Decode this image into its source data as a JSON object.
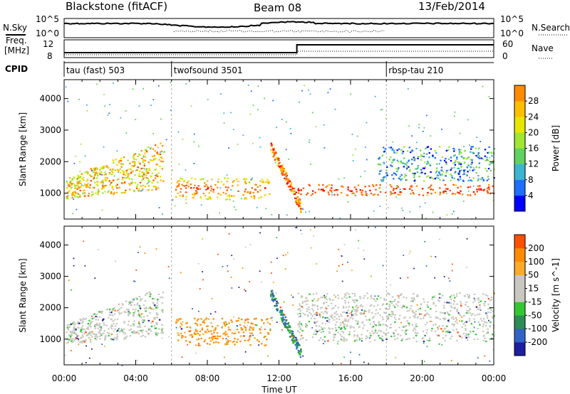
{
  "header": {
    "station": "Blackstone (fitACF)",
    "beam": "Beam 08",
    "date": "13/Feb/2014"
  },
  "noise_panel": {
    "left_label": "N.Sky",
    "right_label": "N.Search",
    "left_ticks": [
      "10^5",
      "10^0"
    ],
    "right_ticks": [
      "10^5",
      "10^0"
    ]
  },
  "freq_panel": {
    "left_label_1": "Freq.",
    "left_label_2": "[MHz]",
    "left_ticks": [
      "12",
      "8"
    ],
    "right_label": "Nave",
    "right_ticks": [
      "60",
      "0"
    ]
  },
  "cpid_panel": {
    "label": "CPID",
    "segments": [
      {
        "name": "tau (fast) 503",
        "start_hour": 0
      },
      {
        "name": "twofsound 3501",
        "start_hour": 6
      },
      {
        "name": "rbsp-tau 210",
        "start_hour": 18
      }
    ]
  },
  "colors": {
    "power_scale": [
      "#0000ff",
      "#1e6eff",
      "#3cb4d2",
      "#5fd25f",
      "#a0e632",
      "#e6e600",
      "#ffbe00",
      "#ff8c00",
      "#ff5000",
      "#ff0000"
    ],
    "velocity_scale": [
      "#ff0000",
      "#ff5000",
      "#ff8c00",
      "#ffaa2a",
      "#c8c8c0",
      "#c8c8c0",
      "#32c832",
      "#2d8c55",
      "#3264c8",
      "#1e1ea0"
    ]
  },
  "chart_data": [
    {
      "type": "heatmap",
      "title": "Power",
      "xlabel": "Time UT",
      "ylabel": "Slant Range [km]",
      "x_ticks": [
        "00:00",
        "04:00",
        "08:00",
        "12:00",
        "16:00",
        "20:00",
        "00:00"
      ],
      "x_range_hours": [
        0,
        24
      ],
      "y_ticks": [
        "1000",
        "2000",
        "3000",
        "4000"
      ],
      "ylim": [
        180,
        4600
      ],
      "colorbar": {
        "label": "Power [dB]",
        "ticks": [
          "4",
          "8",
          "12",
          "16",
          "20",
          "24",
          "28"
        ],
        "range": [
          0,
          32
        ]
      },
      "echo_bands": [
        {
          "name": "early ionospheric",
          "hours": [
            0.1,
            5.5
          ],
          "range_km": [
            850,
            2600
          ],
          "power_db": 20
        },
        {
          "name": "main daytime",
          "hours": [
            6.2,
            11.5
          ],
          "range_km": [
            820,
            1500
          ],
          "power_db": 22
        },
        {
          "name": "descending trace",
          "hours": [
            11.5,
            13.2
          ],
          "range_km": [
            600,
            2500
          ],
          "power_db": 24
        },
        {
          "name": "afternoon band",
          "hours": [
            13.0,
            24.0
          ],
          "range_km": [
            950,
            1300
          ],
          "power_db": 24
        },
        {
          "name": "upper afternoon",
          "hours": [
            17.5,
            24.0
          ],
          "range_km": [
            1400,
            2500
          ],
          "power_db": 8
        }
      ]
    },
    {
      "type": "heatmap",
      "title": "Velocity",
      "xlabel": "Time UT",
      "ylabel": "Slant Range [km]",
      "x_ticks": [
        "00:00",
        "04:00",
        "08:00",
        "12:00",
        "16:00",
        "20:00",
        "00:00"
      ],
      "x_range_hours": [
        0,
        24
      ],
      "y_ticks": [
        "1000",
        "2000",
        "3000",
        "4000"
      ],
      "ylim": [
        180,
        4600
      ],
      "colorbar": {
        "label": "Velocity [m s^-1]",
        "ticks": [
          "200",
          "100",
          "50",
          "15",
          "-15",
          "-50",
          "-100",
          "-200"
        ],
        "range": [
          -250,
          250
        ]
      },
      "echo_bands": [
        {
          "name": "early ground scatter",
          "hours": [
            0.1,
            5.5
          ],
          "range_km": [
            850,
            2600
          ],
          "velocity": 0
        },
        {
          "name": "main daytime",
          "hours": [
            6.2,
            11.5
          ],
          "range_km": [
            800,
            1700
          ],
          "velocity": -60
        },
        {
          "name": "descending trace",
          "hours": [
            11.5,
            13.2
          ],
          "range_km": [
            600,
            2500
          ],
          "velocity": 40
        },
        {
          "name": "afternoon ground scatter",
          "hours": [
            13.0,
            24.0
          ],
          "range_km": [
            950,
            2500
          ],
          "velocity": 0
        }
      ]
    }
  ]
}
